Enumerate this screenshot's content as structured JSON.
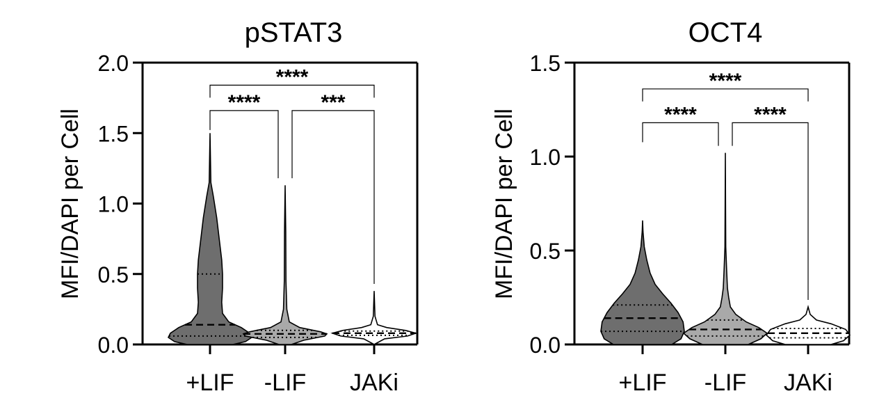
{
  "colors": {
    "lif_plus": "#6e6e6e",
    "lif_minus": "#a9a9a9",
    "jaki": "#ffffff",
    "stroke": "#000000"
  },
  "chart_data": [
    {
      "type": "violin",
      "title": "pSTAT3",
      "ylabel": "MFI/DAPI per Cell",
      "xlabel": "",
      "ylim": [
        0,
        2.0
      ],
      "yticks": [
        "0.0",
        "0.5",
        "1.0",
        "1.5",
        "2.0"
      ],
      "yticks_values": [
        0,
        0.5,
        1.0,
        1.5,
        2.0
      ],
      "categories": [
        "+LIF",
        "-LIF",
        "JAKi"
      ],
      "groups": [
        {
          "name": "+LIF",
          "color": "#6e6e6e",
          "min": 0.0,
          "max": 1.5,
          "median": 0.14,
          "q1": 0.06,
          "q3": 0.5,
          "density": [
            [
              0.0,
              0.55
            ],
            [
              0.02,
              0.85
            ],
            [
              0.05,
              1.0
            ],
            [
              0.08,
              0.95
            ],
            [
              0.12,
              0.75
            ],
            [
              0.16,
              0.45
            ],
            [
              0.22,
              0.3
            ],
            [
              0.3,
              0.28
            ],
            [
              0.4,
              0.3
            ],
            [
              0.5,
              0.3
            ],
            [
              0.6,
              0.28
            ],
            [
              0.75,
              0.22
            ],
            [
              0.9,
              0.16
            ],
            [
              1.05,
              0.08
            ],
            [
              1.15,
              0.02
            ],
            [
              1.5,
              0.0
            ]
          ]
        },
        {
          "name": "-LIF",
          "color": "#a9a9a9",
          "min": 0.0,
          "max": 1.13,
          "median": 0.075,
          "q1": 0.05,
          "q3": 0.1,
          "density": [
            [
              0.0,
              0.15
            ],
            [
              0.03,
              0.45
            ],
            [
              0.06,
              0.95
            ],
            [
              0.075,
              1.0
            ],
            [
              0.09,
              0.85
            ],
            [
              0.12,
              0.35
            ],
            [
              0.16,
              0.1
            ],
            [
              0.25,
              0.04
            ],
            [
              0.45,
              0.02
            ],
            [
              0.8,
              0.015
            ],
            [
              1.13,
              0.0
            ]
          ]
        },
        {
          "name": "JAKi",
          "color": "#ffffff",
          "min": 0.0,
          "max": 0.38,
          "median": 0.08,
          "q1": 0.065,
          "q3": 0.095,
          "density": [
            [
              0.0,
              0.0
            ],
            [
              0.04,
              0.25
            ],
            [
              0.06,
              0.8
            ],
            [
              0.08,
              1.0
            ],
            [
              0.1,
              0.75
            ],
            [
              0.12,
              0.3
            ],
            [
              0.14,
              0.08
            ],
            [
              0.2,
              0.02
            ],
            [
              0.38,
              0.0
            ]
          ]
        }
      ],
      "significance": [
        {
          "from": 0,
          "to": 2,
          "label": "****",
          "level": 1.84
        },
        {
          "from": 0,
          "to": 1,
          "label": "****",
          "level": 1.66
        },
        {
          "from": 1,
          "to": 2,
          "label": "***",
          "level": 1.66
        }
      ]
    },
    {
      "type": "violin",
      "title": "OCT4",
      "ylabel": "MFI/DAPI per Cell",
      "xlabel": "",
      "ylim": [
        0,
        1.5
      ],
      "yticks": [
        "0.0",
        "0.5",
        "1.0",
        "1.5"
      ],
      "yticks_values": [
        0,
        0.5,
        1.0,
        1.5
      ],
      "categories": [
        "+LIF",
        "-LIF",
        "JAKi"
      ],
      "groups": [
        {
          "name": "+LIF",
          "color": "#6e6e6e",
          "min": 0.0,
          "max": 0.66,
          "median": 0.14,
          "q1": 0.07,
          "q3": 0.21,
          "density": [
            [
              0.0,
              0.7
            ],
            [
              0.03,
              0.92
            ],
            [
              0.07,
              1.0
            ],
            [
              0.12,
              0.97
            ],
            [
              0.17,
              0.85
            ],
            [
              0.22,
              0.68
            ],
            [
              0.27,
              0.48
            ],
            [
              0.32,
              0.3
            ],
            [
              0.38,
              0.18
            ],
            [
              0.45,
              0.1
            ],
            [
              0.52,
              0.04
            ],
            [
              0.6,
              0.01
            ],
            [
              0.66,
              0.0
            ]
          ]
        },
        {
          "name": "-LIF",
          "color": "#a9a9a9",
          "min": 0.0,
          "max": 1.02,
          "median": 0.08,
          "q1": 0.045,
          "q3": 0.13,
          "density": [
            [
              0.0,
              0.55
            ],
            [
              0.03,
              0.85
            ],
            [
              0.06,
              1.0
            ],
            [
              0.09,
              0.8
            ],
            [
              0.12,
              0.5
            ],
            [
              0.16,
              0.25
            ],
            [
              0.2,
              0.12
            ],
            [
              0.25,
              0.08
            ],
            [
              0.3,
              0.05
            ],
            [
              0.4,
              0.03
            ],
            [
              0.52,
              0.01
            ],
            [
              0.75,
              0.005
            ],
            [
              1.02,
              0.0
            ]
          ]
        },
        {
          "name": "JAKi",
          "color": "#ffffff",
          "min": 0.0,
          "max": 0.2,
          "median": 0.06,
          "q1": 0.035,
          "q3": 0.085,
          "density": [
            [
              0.0,
              0.55
            ],
            [
              0.02,
              0.85
            ],
            [
              0.05,
              1.0
            ],
            [
              0.08,
              0.9
            ],
            [
              0.11,
              0.55
            ],
            [
              0.13,
              0.2
            ],
            [
              0.16,
              0.05
            ],
            [
              0.2,
              0.0
            ]
          ]
        }
      ],
      "significance": [
        {
          "from": 0,
          "to": 2,
          "label": "****",
          "level": 1.36
        },
        {
          "from": 0,
          "to": 1,
          "label": "****",
          "level": 1.18
        },
        {
          "from": 1,
          "to": 2,
          "label": "****",
          "level": 1.18
        }
      ]
    }
  ]
}
